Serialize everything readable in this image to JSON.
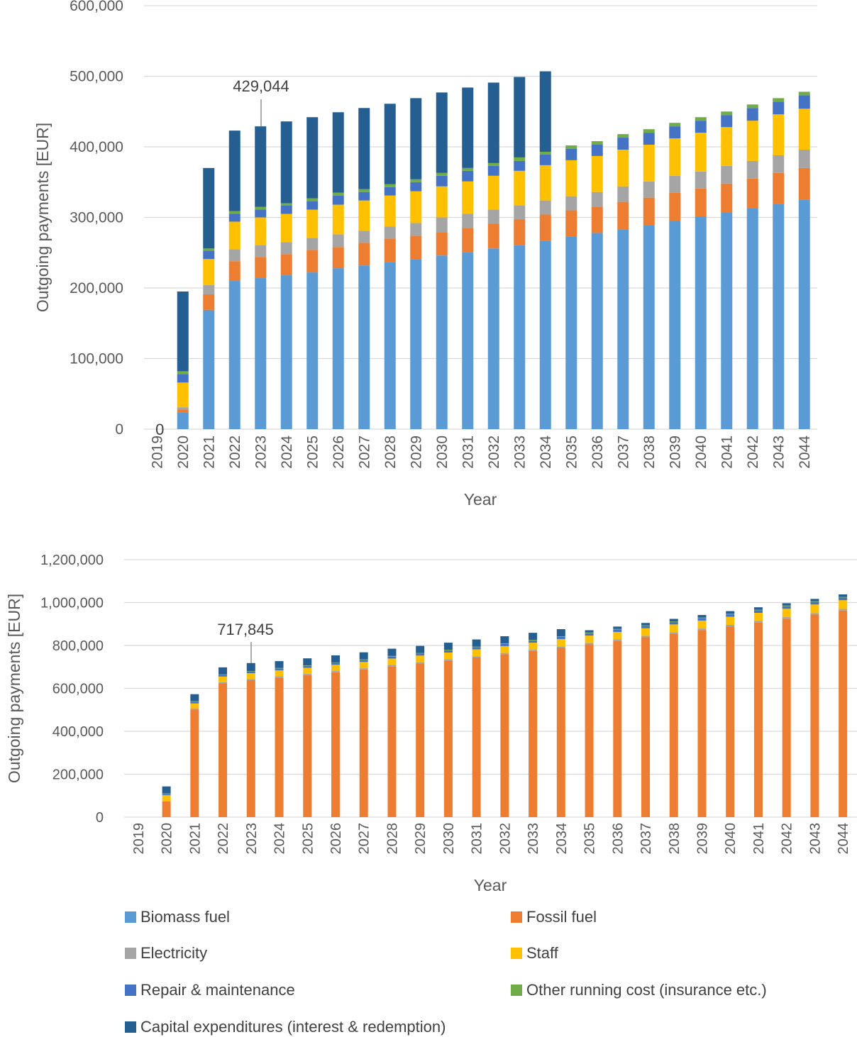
{
  "legend": [
    {
      "name": "Biomass fuel",
      "color": "#5b9bd5"
    },
    {
      "name": "Fossil fuel",
      "color": "#ed7d31"
    },
    {
      "name": "Electricity",
      "color": "#a5a5a5"
    },
    {
      "name": "Staff",
      "color": "#ffc000"
    },
    {
      "name": "Repair & maintenance",
      "color": "#4472c4"
    },
    {
      "name": "Other running cost (insurance etc.)",
      "color": "#70ad47"
    },
    {
      "name": "Capital expenditures (interest & redemption)",
      "color": "#255e91"
    }
  ],
  "chart_data": [
    {
      "type": "bar",
      "stacked": true,
      "xlabel": "Year",
      "ylabel": "Outgoing payments [EUR]",
      "ylim": [
        0,
        600000
      ],
      "yticks": [
        "0",
        "100,000",
        "200,000",
        "300,000",
        "400,000",
        "500,000",
        "600,000"
      ],
      "grid": true,
      "categories": [
        "2019",
        "2020",
        "2021",
        "2022",
        "2023",
        "2024",
        "2025",
        "2026",
        "2027",
        "2028",
        "2029",
        "2030",
        "2031",
        "2032",
        "2033",
        "2034",
        "2035",
        "2036",
        "2037",
        "2038",
        "2039",
        "2040",
        "2041",
        "2042",
        "2043",
        "2044"
      ],
      "series": [
        {
          "name": "Biomass fuel",
          "color": "#5b9bd5",
          "values": [
            0,
            24000,
            169000,
            210000,
            214000,
            218000,
            222000,
            228000,
            232000,
            237000,
            241000,
            246000,
            251000,
            256000,
            261000,
            267000,
            273000,
            278000,
            283000,
            289000,
            295000,
            301000,
            307000,
            313000,
            319000,
            325000
          ]
        },
        {
          "name": "Fossil fuel",
          "color": "#ed7d31",
          "values": [
            0,
            4000,
            22000,
            28000,
            30000,
            30000,
            32000,
            30000,
            32000,
            33000,
            33000,
            33000,
            34000,
            35000,
            36000,
            37000,
            37000,
            37000,
            39000,
            39000,
            40000,
            40000,
            41000,
            42000,
            44000,
            45000
          ]
        },
        {
          "name": "Electricity",
          "color": "#a5a5a5",
          "values": [
            0,
            3000,
            13000,
            17000,
            17000,
            17000,
            17000,
            18000,
            17000,
            17000,
            18000,
            21000,
            20000,
            20000,
            20000,
            20000,
            20000,
            21000,
            22000,
            23000,
            24000,
            24000,
            25000,
            25000,
            25000,
            26000
          ]
        },
        {
          "name": "Staff",
          "color": "#ffc000",
          "values": [
            0,
            35000,
            37000,
            39000,
            39000,
            40000,
            40000,
            42000,
            43000,
            44000,
            45000,
            44000,
            46000,
            48000,
            49000,
            50000,
            51000,
            51000,
            52000,
            52000,
            53000,
            55000,
            55000,
            57000,
            58000,
            58000
          ]
        },
        {
          "name": "Repair & maintenance",
          "color": "#4472c4",
          "values": [
            0,
            12000,
            12000,
            11000,
            11000,
            12000,
            12000,
            13000,
            12000,
            12000,
            13000,
            15000,
            15000,
            14000,
            14000,
            15000,
            16000,
            16000,
            17000,
            17000,
            17000,
            17000,
            17000,
            18000,
            18000,
            19000
          ]
        },
        {
          "name": "Other running cost (insurance etc.)",
          "color": "#70ad47",
          "values": [
            0,
            4000,
            3000,
            4000,
            4000,
            3000,
            4000,
            4000,
            4000,
            4000,
            4000,
            4000,
            4000,
            4000,
            5000,
            4000,
            5000,
            5000,
            5000,
            5000,
            5000,
            5000,
            5000,
            5000,
            5000,
            5000
          ]
        },
        {
          "name": "Capital expenditures (interest & redemption)",
          "color": "#255e91",
          "values": [
            0,
            113000,
            114000,
            114000,
            114000,
            116000,
            115000,
            114000,
            115000,
            114000,
            115000,
            114000,
            114000,
            114000,
            114000,
            114000,
            0,
            0,
            0,
            0,
            0,
            0,
            0,
            0,
            0,
            0
          ]
        }
      ],
      "data_labels": [
        {
          "category": "2019",
          "text": "0"
        }
      ],
      "annotation": {
        "category": "2023",
        "text": "429,044"
      }
    },
    {
      "type": "bar",
      "stacked": true,
      "xlabel": "Year",
      "ylabel": "Outgoing payments [EUR]",
      "ylim": [
        0,
        1200000
      ],
      "yticks": [
        "0",
        "200,000",
        "400,000",
        "600,000",
        "800,000",
        "1,000,000",
        "1,200,000"
      ],
      "grid": true,
      "categories": [
        "2019",
        "2020",
        "2021",
        "2022",
        "2023",
        "2024",
        "2025",
        "2026",
        "2027",
        "2028",
        "2029",
        "2030",
        "2031",
        "2032",
        "2033",
        "2034",
        "2035",
        "2036",
        "2037",
        "2038",
        "2039",
        "2040",
        "2041",
        "2042",
        "2043",
        "2044"
      ],
      "series": [
        {
          "name": "Biomass fuel",
          "color": "#5b9bd5",
          "values": [
            0,
            0,
            0,
            0,
            0,
            0,
            0,
            0,
            0,
            0,
            0,
            0,
            0,
            0,
            0,
            0,
            0,
            0,
            0,
            0,
            0,
            0,
            0,
            0,
            0,
            0
          ]
        },
        {
          "name": "Fossil fuel",
          "color": "#ed7d31",
          "values": [
            0,
            73000,
            502000,
            623000,
            638000,
            650000,
            662000,
            675000,
            688000,
            703000,
            716000,
            730000,
            744000,
            759000,
            774000,
            790000,
            805000,
            821000,
            838000,
            855000,
            872000,
            889000,
            907000,
            925000,
            944000,
            963000
          ]
        },
        {
          "name": "Electricity",
          "color": "#a5a5a5",
          "values": [
            0,
            2000,
            5000,
            6000,
            6000,
            6000,
            6000,
            6000,
            6000,
            6000,
            6000,
            6000,
            6000,
            6000,
            6000,
            6000,
            7000,
            7000,
            7000,
            7000,
            7000,
            7000,
            7000,
            7000,
            7000,
            7000
          ]
        },
        {
          "name": "Staff",
          "color": "#ffc000",
          "values": [
            0,
            27000,
            23000,
            26000,
            27000,
            28000,
            28000,
            29000,
            29000,
            30000,
            31000,
            31000,
            32000,
            32000,
            33000,
            34000,
            34000,
            35000,
            35000,
            36000,
            37000,
            38000,
            38000,
            39000,
            40000,
            41000
          ]
        },
        {
          "name": "Repair & maintenance",
          "color": "#4472c4",
          "values": [
            0,
            6000,
            8000,
            8000,
            8000,
            9000,
            9000,
            9000,
            9000,
            9000,
            9000,
            10000,
            10000,
            10000,
            10000,
            10000,
            11000,
            11000,
            11000,
            11000,
            11000,
            11000,
            12000,
            12000,
            12000,
            12000
          ]
        },
        {
          "name": "Other running cost (insurance etc.)",
          "color": "#70ad47",
          "values": [
            0,
            2000,
            2000,
            2000,
            2000,
            2000,
            2000,
            2000,
            3000,
            3000,
            3000,
            3000,
            3000,
            3000,
            3000,
            3000,
            3000,
            3000,
            3000,
            3000,
            3000,
            3000,
            3000,
            3000,
            3000,
            3000
          ]
        },
        {
          "name": "Capital expenditures (interest & redemption)",
          "color": "#255e91",
          "values": [
            0,
            33000,
            33000,
            33000,
            37000,
            32000,
            33000,
            33000,
            33000,
            34000,
            33000,
            33000,
            33000,
            33000,
            33000,
            33000,
            11000,
            11000,
            11000,
            12000,
            12000,
            12000,
            11000,
            11000,
            11000,
            12000
          ]
        }
      ],
      "annotation": {
        "category": "2023",
        "text": "717,845"
      }
    }
  ]
}
